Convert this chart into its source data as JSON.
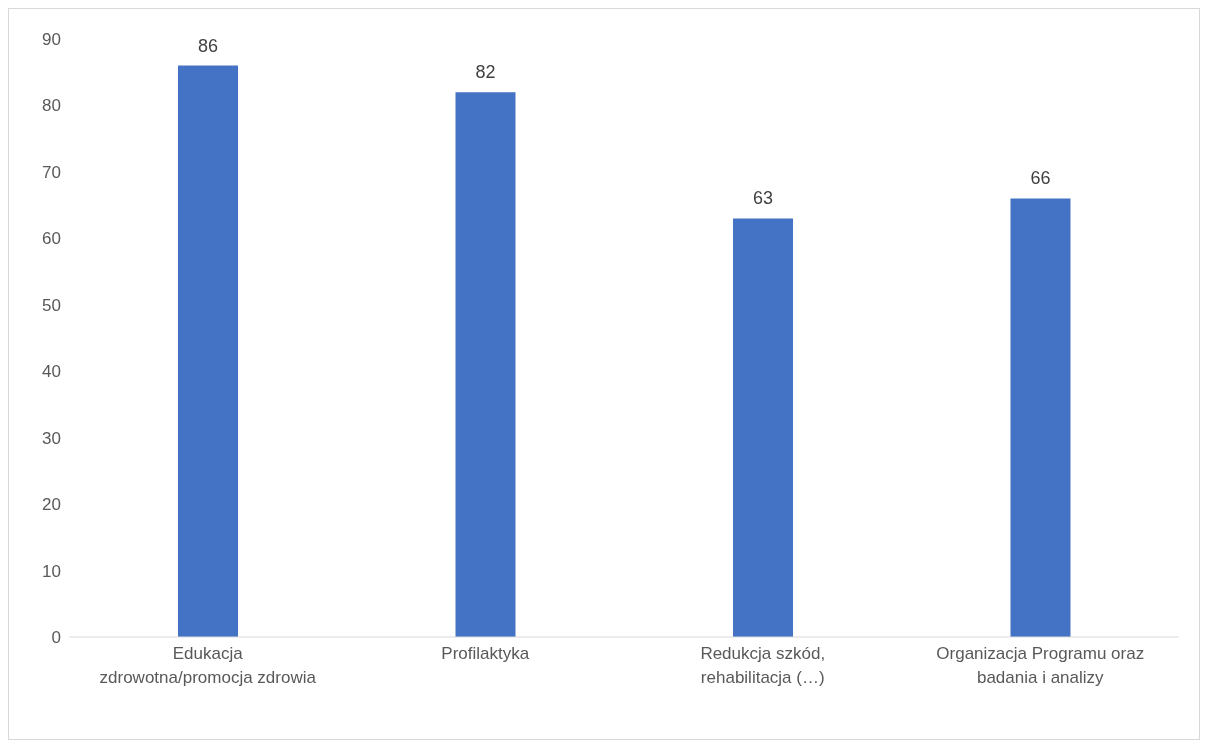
{
  "chart_data": {
    "type": "bar",
    "categories": [
      "Edukacja zdrowotna/promocja zdrowia",
      "Profilaktyka",
      "Redukcja szkód, rehabilitacja (…)",
      "Organizacja Programu oraz badania i analizy"
    ],
    "values": [
      86,
      82,
      63,
      66
    ],
    "color": "#4472c4",
    "data_labels": true,
    "ylim": [
      0,
      90
    ],
    "yticks": [
      0,
      10,
      20,
      30,
      40,
      50,
      60,
      70,
      80,
      90
    ],
    "grid": false
  }
}
